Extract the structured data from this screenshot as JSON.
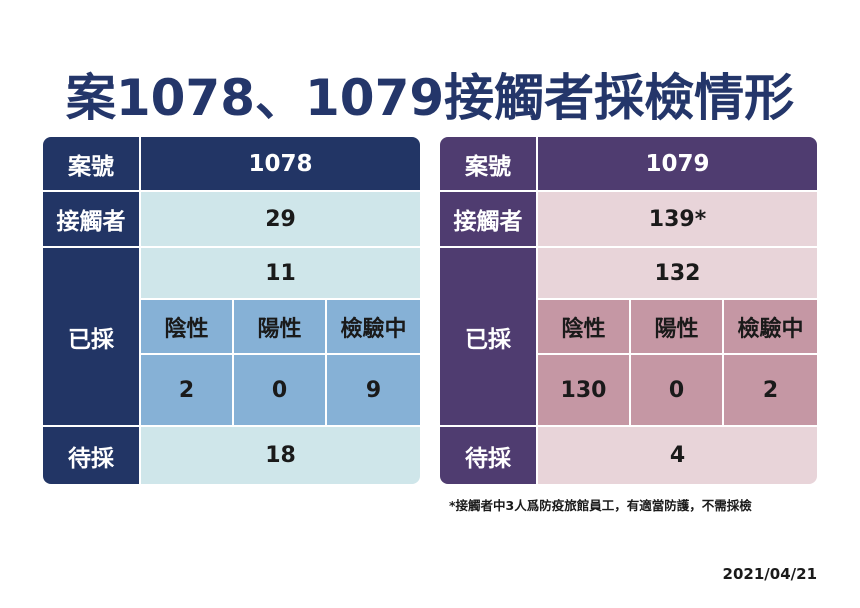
{
  "title": "案1078、1079接觸者採檢情形",
  "left_table": {
    "case_label": "案號",
    "case_value": "1078",
    "contacts_label": "接觸者",
    "contacts_value": "29",
    "tested_label": "已採",
    "tested_value": "11",
    "negative_label": "陰性",
    "positive_label": "陽性",
    "pending_label": "檢驗中",
    "negative_value": "2",
    "positive_value": "0",
    "pending_value": "9",
    "awaiting_label": "待採",
    "awaiting_value": "18",
    "colors": {
      "dark": "#223565",
      "light": "#cfe6ea",
      "mid": "#86b1d6"
    }
  },
  "right_table": {
    "case_label": "案號",
    "case_value": "1079",
    "contacts_label": "接觸者",
    "contacts_value": "139*",
    "tested_label": "已採",
    "tested_value": "132",
    "negative_label": "陰性",
    "positive_label": "陽性",
    "pending_label": "檢驗中",
    "negative_value": "130",
    "positive_value": "0",
    "pending_value": "2",
    "awaiting_label": "待採",
    "awaiting_value": "4",
    "colors": {
      "dark": "#4f3c70",
      "light": "#e8d4d9",
      "mid": "#c597a4"
    }
  },
  "footnote": "*接觸者中3人爲防疫旅館員工，有適當防護，不需採檢",
  "date": "2021/04/21"
}
